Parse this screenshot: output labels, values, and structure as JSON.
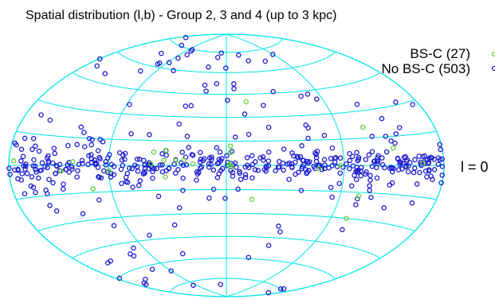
{
  "chart_data": {
    "type": "scatter",
    "projection": "aitoff-hammer",
    "title": "Spatial distribution (l,b) - Group 2, 3 and 4 (up to 3 kpc)",
    "xlabel": "",
    "ylabel": "",
    "annotation": "l = 0",
    "grid": true,
    "legend_position": "top-right",
    "colors": {
      "grid": "#00e5e5",
      "bs_c": "#5dd33a",
      "no_bs_c": "#1a1ad1",
      "boundary": "#00e5e5"
    },
    "series": [
      {
        "name": "BS-C (27)",
        "marker": "circle",
        "points": [
          {
            "l": 3,
            "b": 12
          },
          {
            "l": 3,
            "b": 8
          },
          {
            "l": 4,
            "b": -1
          },
          {
            "l": 2,
            "b": 0
          },
          {
            "l": -46,
            "b": -7
          },
          {
            "l": -46,
            "b": 9
          },
          {
            "l": -47,
            "b": 3
          },
          {
            "l": -38,
            "b": 3
          },
          {
            "l": -32,
            "b": 3
          },
          {
            "l": -55,
            "b": 8
          },
          {
            "l": 20,
            "b": -21
          },
          {
            "l": -57,
            "b": 1
          },
          {
            "l": 112,
            "b": 21
          },
          {
            "l": 106,
            "b": -17
          },
          {
            "l": 104,
            "b": -30
          },
          {
            "l": 159,
            "b": 1
          },
          {
            "l": 87,
            "b": 0
          },
          {
            "l": -90,
            "b": -3
          },
          {
            "l": -120,
            "b": 2
          },
          {
            "l": 70,
            "b": -2
          },
          {
            "l": 18,
            "b": 40
          },
          {
            "l": -175,
            "b": 2
          },
          {
            "l": -25,
            "b": 1
          },
          {
            "l": 133,
            "b": 9
          },
          {
            "l": -105,
            "b": -13
          },
          {
            "l": -130,
            "b": -3
          },
          {
            "l": 3,
            "b": 1
          }
        ]
      },
      {
        "name": "No BS-C (503)",
        "marker": "circle",
        "points": []
      }
    ],
    "note_no_bs_c": "503 sources distributed mostly near b=0 with scatter to high latitudes; dense band |b|<15"
  }
}
